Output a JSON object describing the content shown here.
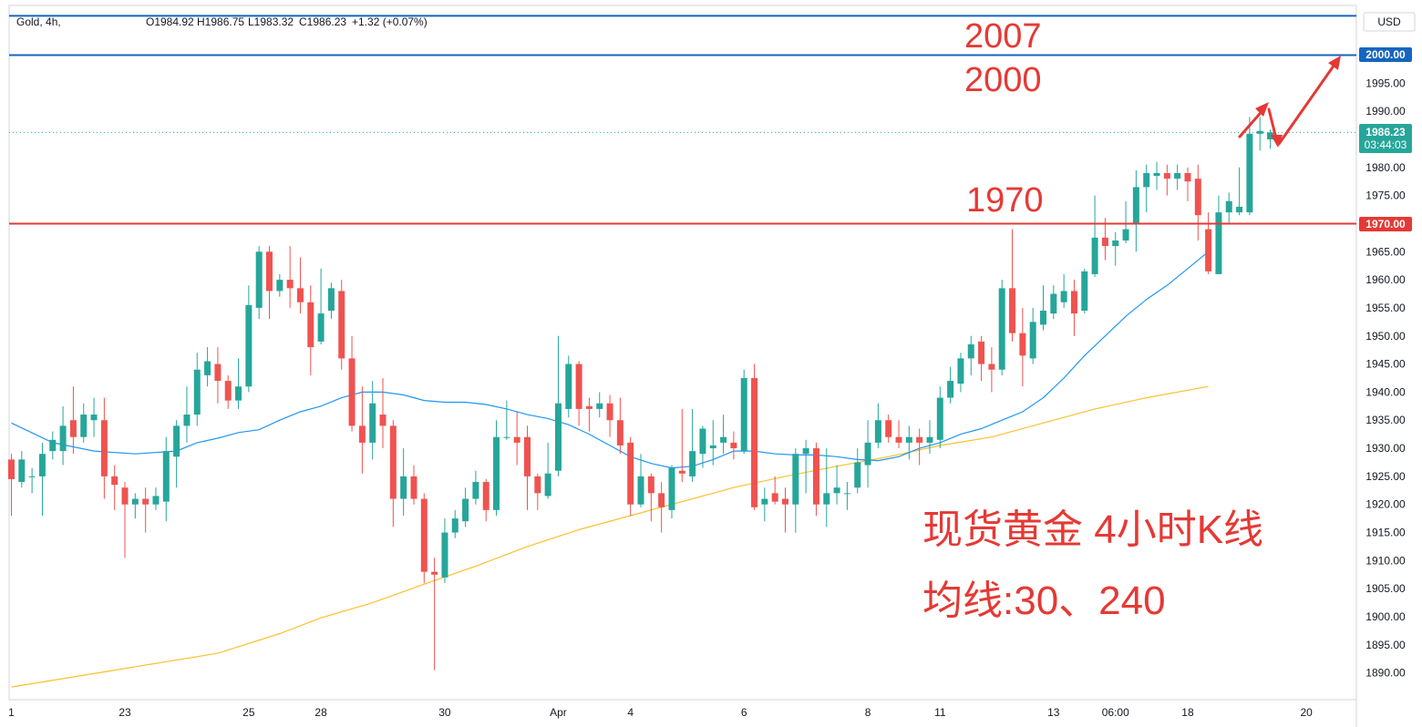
{
  "legend": {
    "symbol": "Gold, 4h,",
    "open": "O1984.92",
    "high": "H1986.75",
    "low": "L1983.32",
    "close": "C1986.23",
    "change": "+1.32 (+0.07%)"
  },
  "currency": "USD",
  "price_tags": {
    "current_price": "1986.23",
    "countdown": "03:44:03",
    "line_2000": "2000.00",
    "line_1970": "1970.00"
  },
  "annotations": {
    "level_2007": "2007",
    "level_2000": "2000",
    "level_1970": "1970",
    "caption_line1": "现货黄金 4小时K线",
    "caption_line2": "均线:30、240"
  },
  "colors": {
    "up": "#26a69a",
    "down": "#ef5350",
    "ma30": "#2196f3",
    "ma240": "#fbc02d",
    "line_blue": "#1565c0",
    "line_red": "#e53935",
    "annotation": "#e53935",
    "current_price_tag": "#26a69a"
  },
  "chart_data": {
    "type": "candlestick",
    "y_ticks": [
      1890,
      1895,
      1900,
      1905,
      1910,
      1915,
      1920,
      1925,
      1930,
      1935,
      1940,
      1945,
      1950,
      1955,
      1960,
      1965,
      1970,
      1975,
      1980,
      1985,
      1990,
      1995,
      2000
    ],
    "y_tick_labels": [
      "1890.00",
      "1895.00",
      "1900.00",
      "1905.00",
      "1910.00",
      "1915.00",
      "1920.00",
      "1925.00",
      "1930.00",
      "1935.00",
      "1940.00",
      "1945.00",
      "1950.00",
      "1955.00",
      "1960.00",
      "1965.00",
      "1970.00",
      "1975.00",
      "1980.00",
      "1985.00",
      "1990.00",
      "1995.00",
      "2000.00"
    ],
    "x_labels": [
      {
        "label": "1",
        "bar": 0
      },
      {
        "label": "23",
        "bar": 11
      },
      {
        "label": "25",
        "bar": 23
      },
      {
        "label": "28",
        "bar": 30
      },
      {
        "label": "30",
        "bar": 42
      },
      {
        "label": "Apr",
        "bar": 53
      },
      {
        "label": "4",
        "bar": 60
      },
      {
        "label": "6",
        "bar": 71
      },
      {
        "label": "8",
        "bar": 83
      },
      {
        "label": "11",
        "bar": 90
      },
      {
        "label": "13",
        "bar": 101
      },
      {
        "label": "06:00",
        "bar": 107
      },
      {
        "label": "18",
        "bar": 114
      },
      {
        "label": "20",
        "bar": 125.5
      }
    ],
    "horizontal_lines": [
      {
        "price": 2000,
        "color": "line_blue"
      },
      {
        "price": 1970,
        "color": "line_red"
      },
      {
        "price": 2007,
        "color": "line_blue"
      }
    ],
    "candles": [
      [
        1928.0,
        1924.5,
        1929.0,
        1918.0
      ],
      [
        1924.0,
        1928.0,
        1929.5,
        1923.0
      ],
      [
        1925.0,
        1925.0,
        1926.5,
        1922.0
      ],
      [
        1925.0,
        1929.0,
        1931.0,
        1918.0
      ],
      [
        1929.5,
        1931.5,
        1933.0,
        1928.0
      ],
      [
        1929.5,
        1934.0,
        1937.5,
        1927.0
      ],
      [
        1935.0,
        1932.0,
        1941.0,
        1929.0
      ],
      [
        1932.0,
        1936.0,
        1938.0,
        1931.0
      ],
      [
        1935.0,
        1936.0,
        1939.0,
        1932.0
      ],
      [
        1935.0,
        1925.0,
        1939.0,
        1921.0
      ],
      [
        1925.0,
        1923.5,
        1927.0,
        1919.0
      ],
      [
        1923.0,
        1920.0,
        1924.0,
        1910.5
      ],
      [
        1920.0,
        1921.0,
        1922.0,
        1917.5
      ],
      [
        1921.0,
        1920.0,
        1923.0,
        1915.0
      ],
      [
        1920.0,
        1921.5,
        1923.0,
        1919.0
      ],
      [
        1920.5,
        1929.5,
        1932.0,
        1917.0
      ],
      [
        1928.5,
        1934.0,
        1935.0,
        1923.0
      ],
      [
        1934.0,
        1936.0,
        1941.0,
        1931.0
      ],
      [
        1936.0,
        1944.0,
        1947.0,
        1934.0
      ],
      [
        1943.0,
        1945.5,
        1948.0,
        1941.0
      ],
      [
        1945.0,
        1942.0,
        1948.0,
        1938.0
      ],
      [
        1942.0,
        1938.5,
        1943.0,
        1937.0
      ],
      [
        1938.5,
        1941.0,
        1946.0,
        1937.0
      ],
      [
        1941.0,
        1955.5,
        1959.0,
        1940.0
      ],
      [
        1955.0,
        1965.0,
        1966.0,
        1953.0
      ],
      [
        1965.0,
        1958.0,
        1966.0,
        1953.0
      ],
      [
        1958.0,
        1960.0,
        1961.0,
        1957.0
      ],
      [
        1960.0,
        1958.5,
        1966.0,
        1955.0
      ],
      [
        1958.5,
        1956.0,
        1964.0,
        1954.0
      ],
      [
        1956.0,
        1948.0,
        1959.0,
        1943.0
      ],
      [
        1949.0,
        1954.0,
        1962.0,
        1948.5
      ],
      [
        1954.5,
        1958.5,
        1959.5,
        1953.0
      ],
      [
        1958.0,
        1946.0,
        1960.0,
        1944.0
      ],
      [
        1946.0,
        1934.0,
        1950.0,
        1933.0
      ],
      [
        1934.0,
        1931.0,
        1941.0,
        1925.5
      ],
      [
        1931.0,
        1938.0,
        1942.0,
        1928.0
      ],
      [
        1936.0,
        1934.0,
        1942.5,
        1930.0
      ],
      [
        1934.0,
        1921.0,
        1935.0,
        1916.0
      ],
      [
        1921.0,
        1925.0,
        1930.0,
        1918.0
      ],
      [
        1925.0,
        1921.0,
        1927.0,
        1920.0
      ],
      [
        1921.0,
        1908.0,
        1922.0,
        1906.0
      ],
      [
        1908.0,
        1907.5,
        1910.5,
        1890.5
      ],
      [
        1907.0,
        1915.0,
        1917.5,
        1906.0
      ],
      [
        1915.0,
        1917.5,
        1919.0,
        1914.0
      ],
      [
        1917.0,
        1921.0,
        1923.0,
        1916.0
      ],
      [
        1921.0,
        1924.0,
        1926.0,
        1920.0
      ],
      [
        1924.0,
        1919.0,
        1924.5,
        1917.0
      ],
      [
        1919.0,
        1932.0,
        1935.0,
        1918.0
      ],
      [
        1932.0,
        1932.0,
        1938.5,
        1931.5
      ],
      [
        1932.0,
        1931.0,
        1936.5,
        1927.0
      ],
      [
        1932.0,
        1925.0,
        1934.0,
        1919.0
      ],
      [
        1925.0,
        1922.0,
        1925.5,
        1919.0
      ],
      [
        1921.5,
        1925.5,
        1931.0,
        1921.0
      ],
      [
        1926.0,
        1938.0,
        1950.0,
        1925.0
      ],
      [
        1937.0,
        1945.0,
        1946.5,
        1935.5
      ],
      [
        1945.0,
        1937.0,
        1945.5,
        1934.0
      ],
      [
        1937.5,
        1937.0,
        1939.0,
        1933.0
      ],
      [
        1937.0,
        1938.0,
        1940.0,
        1935.5
      ],
      [
        1938.0,
        1935.0,
        1939.5,
        1932.0
      ],
      [
        1935.0,
        1930.5,
        1939.0,
        1929.0
      ],
      [
        1931.0,
        1920.0,
        1932.0,
        1918.0
      ],
      [
        1920.0,
        1925.0,
        1929.0,
        1919.5
      ],
      [
        1925.0,
        1922.0,
        1925.5,
        1917.0
      ],
      [
        1922.0,
        1919.5,
        1924.0,
        1915.0
      ],
      [
        1919.0,
        1926.5,
        1927.0,
        1917.5
      ],
      [
        1926.0,
        1925.5,
        1937.0,
        1924.0
      ],
      [
        1925.0,
        1929.5,
        1937.0,
        1924.0
      ],
      [
        1929.0,
        1933.5,
        1934.0,
        1926.5
      ],
      [
        1930.0,
        1930.5,
        1935.0,
        1927.0
      ],
      [
        1931.0,
        1932.0,
        1936.0,
        1929.0
      ],
      [
        1931.0,
        1930.0,
        1933.0,
        1928.0
      ],
      [
        1929.5,
        1942.5,
        1944.0,
        1929.0
      ],
      [
        1942.5,
        1919.5,
        1945.0,
        1919.0
      ],
      [
        1920.0,
        1921.0,
        1923.0,
        1917.0
      ],
      [
        1922.0,
        1920.5,
        1925.0,
        1920.0
      ],
      [
        1921.0,
        1920.0,
        1923.0,
        1915.0
      ],
      [
        1920.0,
        1929.0,
        1930.0,
        1915.0
      ],
      [
        1929.0,
        1930.0,
        1931.5,
        1922.0
      ],
      [
        1930.0,
        1920.0,
        1931.0,
        1918.0
      ],
      [
        1920.0,
        1922.0,
        1930.0,
        1916.0
      ],
      [
        1922.0,
        1923.0,
        1927.0,
        1920.0
      ],
      [
        1922.0,
        1922.0,
        1924.0,
        1919.0
      ],
      [
        1923.0,
        1927.5,
        1930.0,
        1922.0
      ],
      [
        1927.0,
        1931.0,
        1935.0,
        1923.0
      ],
      [
        1931.0,
        1935.0,
        1938.0,
        1930.0
      ],
      [
        1935.0,
        1932.0,
        1936.0,
        1931.0
      ],
      [
        1932.0,
        1931.0,
        1935.0,
        1930.0
      ],
      [
        1931.0,
        1932.0,
        1934.0,
        1928.0
      ],
      [
        1932.0,
        1931.0,
        1933.5,
        1927.0
      ],
      [
        1931.0,
        1932.0,
        1935.0,
        1929.0
      ],
      [
        1931.5,
        1939.0,
        1941.0,
        1930.0
      ],
      [
        1939.0,
        1942.0,
        1944.5,
        1938.0
      ],
      [
        1941.5,
        1946.0,
        1947.0,
        1940.0
      ],
      [
        1946.0,
        1948.5,
        1950.0,
        1943.0
      ],
      [
        1949.0,
        1945.0,
        1950.0,
        1942.0
      ],
      [
        1945.0,
        1944.0,
        1948.0,
        1940.0
      ],
      [
        1944.0,
        1958.5,
        1960.0,
        1943.0
      ],
      [
        1958.5,
        1950.5,
        1969.0,
        1949.0
      ],
      [
        1950.5,
        1946.5,
        1955.0,
        1941.0
      ],
      [
        1946.0,
        1952.5,
        1955.0,
        1945.0
      ],
      [
        1952.0,
        1954.5,
        1959.0,
        1951.0
      ],
      [
        1954.0,
        1957.5,
        1959.0,
        1953.0
      ],
      [
        1956.0,
        1958.0,
        1961.0,
        1955.0
      ],
      [
        1958.0,
        1954.0,
        1960.0,
        1950.0
      ],
      [
        1954.5,
        1961.5,
        1962.0,
        1954.0
      ],
      [
        1961.0,
        1967.5,
        1975.0,
        1960.5
      ],
      [
        1967.5,
        1966.0,
        1971.0,
        1963.5
      ],
      [
        1966.0,
        1967.0,
        1968.5,
        1962.5
      ],
      [
        1967.0,
        1969.0,
        1974.0,
        1966.5
      ],
      [
        1970.0,
        1976.5,
        1979.5,
        1965.0
      ],
      [
        1976.5,
        1979.0,
        1980.5,
        1972.0
      ],
      [
        1978.5,
        1979.0,
        1981.0,
        1976.0
      ],
      [
        1979.0,
        1978.0,
        1980.5,
        1975.0
      ],
      [
        1978.0,
        1979.0,
        1980.5,
        1976.0
      ],
      [
        1979.0,
        1977.5,
        1980.0,
        1974.0
      ],
      [
        1978.0,
        1971.5,
        1980.5,
        1967.0
      ],
      [
        1969.0,
        1961.5,
        1972.0,
        1961.0
      ],
      [
        1961.0,
        1972.0,
        1975.0,
        1961.5
      ],
      [
        1972.0,
        1974.0,
        1975.5,
        1970.0
      ],
      [
        1972.0,
        1973.0,
        1980.0,
        1971.5
      ],
      [
        1972.0,
        1986.0,
        1989.0,
        1971.5
      ],
      [
        1986.0,
        1986.5,
        1989.0,
        1983.0
      ],
      [
        1985.0,
        1986.23,
        1986.75,
        1983.32
      ]
    ],
    "ma30": [
      [
        0,
        1934.5
      ],
      [
        4,
        1931.0
      ],
      [
        8,
        1929.5
      ],
      [
        12,
        1929.0
      ],
      [
        16,
        1929.5
      ],
      [
        18,
        1931.0
      ],
      [
        20,
        1931.8
      ],
      [
        22,
        1932.8
      ],
      [
        24,
        1933.3
      ],
      [
        26,
        1935.0
      ],
      [
        28,
        1936.5
      ],
      [
        30,
        1937.5
      ],
      [
        32,
        1939.0
      ],
      [
        34,
        1940.0
      ],
      [
        36,
        1940.0
      ],
      [
        38,
        1939.5
      ],
      [
        40,
        1938.5
      ],
      [
        42,
        1938.2
      ],
      [
        44,
        1938.2
      ],
      [
        46,
        1937.8
      ],
      [
        48,
        1937.0
      ],
      [
        50,
        1936.0
      ],
      [
        52,
        1935.3
      ],
      [
        54,
        1934.2
      ],
      [
        56,
        1932.5
      ],
      [
        58,
        1930.5
      ],
      [
        60,
        1928.5
      ],
      [
        62,
        1927.3
      ],
      [
        64,
        1926.5
      ],
      [
        66,
        1926.8
      ],
      [
        68,
        1928.0
      ],
      [
        70,
        1929.5
      ],
      [
        72,
        1929.5
      ],
      [
        74,
        1929.0
      ],
      [
        76,
        1928.8
      ],
      [
        78,
        1928.8
      ],
      [
        80,
        1928.5
      ],
      [
        82,
        1928.0
      ],
      [
        84,
        1927.8
      ],
      [
        86,
        1928.5
      ],
      [
        88,
        1930.0
      ],
      [
        90,
        1931.0
      ],
      [
        92,
        1932.5
      ],
      [
        94,
        1933.5
      ],
      [
        96,
        1935.0
      ],
      [
        98,
        1936.5
      ],
      [
        100,
        1939.0
      ],
      [
        102,
        1942.5
      ],
      [
        104,
        1946.5
      ],
      [
        106,
        1950.0
      ],
      [
        108,
        1953.5
      ],
      [
        110,
        1956.5
      ],
      [
        112,
        1959.0
      ],
      [
        114,
        1962.0
      ],
      [
        116,
        1965.0
      ]
    ],
    "ma240": [
      [
        0,
        1887.5
      ],
      [
        10,
        1890.5
      ],
      [
        20,
        1893.5
      ],
      [
        26,
        1897.0
      ],
      [
        30,
        1899.8
      ],
      [
        35,
        1902.5
      ],
      [
        40,
        1905.8
      ],
      [
        45,
        1909.0
      ],
      [
        50,
        1912.5
      ],
      [
        55,
        1915.5
      ],
      [
        60,
        1918.0
      ],
      [
        65,
        1920.5
      ],
      [
        70,
        1923.0
      ],
      [
        75,
        1925.0
      ],
      [
        80,
        1926.8
      ],
      [
        85,
        1928.5
      ],
      [
        90,
        1930.5
      ],
      [
        95,
        1932.0
      ],
      [
        100,
        1934.5
      ],
      [
        105,
        1937.0
      ],
      [
        110,
        1939.0
      ],
      [
        116,
        1941.0
      ]
    ]
  }
}
